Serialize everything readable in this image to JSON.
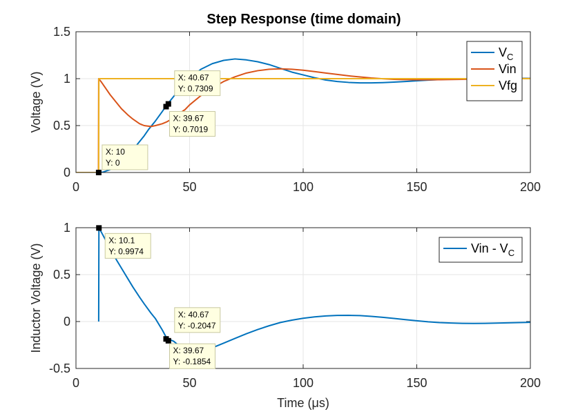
{
  "colors": {
    "blue": "#0072bd",
    "orange": "#d95319",
    "yellow": "#edb120",
    "green": "#77ac30"
  },
  "chart_data": [
    {
      "type": "line",
      "title": "Step Response (time domain)",
      "xlabel": "",
      "ylabel": "Voltage (V)",
      "xlim": [
        0,
        200
      ],
      "ylim": [
        0,
        1.5
      ],
      "xticks": [
        "0",
        "50",
        "100",
        "150",
        "200"
      ],
      "yticks": [
        "0",
        "0.5",
        "1",
        "1.5"
      ],
      "grid": true,
      "legend_position": "top-right",
      "legend": [
        {
          "main": "V",
          "sub": "C",
          "color": "#0072bd"
        },
        {
          "main": "Vin",
          "sub": "",
          "color": "#d95319"
        },
        {
          "main": "Vfg",
          "sub": "",
          "color": "#edb120"
        }
      ],
      "series": [
        {
          "name": "VC",
          "color": "#0072bd",
          "x": [
            10,
            12,
            15,
            18,
            20,
            22,
            25,
            28,
            30,
            32,
            35,
            38,
            40,
            42,
            45,
            48,
            50,
            55,
            60,
            65,
            70,
            75,
            80,
            85,
            90,
            95,
            100,
            105,
            110,
            115,
            120,
            125,
            130,
            135,
            140,
            145,
            150,
            155,
            160,
            165,
            170,
            175,
            180,
            185,
            190,
            195,
            200
          ],
          "y": [
            0,
            0.005,
            0.03,
            0.07,
            0.11,
            0.16,
            0.24,
            0.33,
            0.39,
            0.46,
            0.55,
            0.65,
            0.72,
            0.78,
            0.87,
            0.95,
            1.0,
            1.1,
            1.16,
            1.195,
            1.21,
            1.2,
            1.18,
            1.15,
            1.11,
            1.07,
            1.04,
            1.01,
            0.985,
            0.97,
            0.96,
            0.955,
            0.955,
            0.958,
            0.963,
            0.97,
            0.977,
            0.984,
            0.99,
            0.995,
            0.999,
            1.002,
            1.004,
            1.005,
            1.005,
            1.004,
            1.003
          ]
        },
        {
          "name": "Vin",
          "color": "#d95319",
          "x": [
            9.9,
            10,
            11,
            13,
            15,
            18,
            20,
            23,
            25,
            28,
            30,
            33,
            35,
            38,
            40,
            43,
            45,
            48,
            50,
            55,
            60,
            65,
            70,
            75,
            80,
            85,
            90,
            95,
            100,
            105,
            110,
            115,
            120,
            125,
            130,
            135,
            140,
            145,
            150,
            155,
            160,
            165,
            170,
            175,
            180,
            185,
            190,
            195,
            200
          ],
          "y": [
            0,
            1.0,
            0.97,
            0.9,
            0.83,
            0.74,
            0.68,
            0.61,
            0.57,
            0.52,
            0.5,
            0.49,
            0.5,
            0.52,
            0.54,
            0.58,
            0.62,
            0.67,
            0.72,
            0.82,
            0.9,
            0.97,
            1.02,
            1.06,
            1.085,
            1.1,
            1.105,
            1.1,
            1.09,
            1.075,
            1.06,
            1.045,
            1.03,
            1.018,
            1.007,
            0.999,
            0.993,
            0.99,
            0.988,
            0.988,
            0.989,
            0.991,
            0.993,
            0.995,
            0.997,
            0.999,
            1.0,
            1.001,
            1.001
          ]
        },
        {
          "name": "Vfg",
          "color": "#edb120",
          "x": [
            0,
            9.9,
            10,
            10.1,
            200
          ],
          "y": [
            0,
            0,
            0,
            1,
            1
          ]
        }
      ],
      "datatips": [
        {
          "x": 10,
          "y": 0,
          "text": [
            "X: 10",
            "Y: 0"
          ]
        },
        {
          "x": 40.67,
          "y": 0.7309,
          "text": [
            "X: 40.67",
            "Y: 0.7309"
          ]
        },
        {
          "x": 39.67,
          "y": 0.7019,
          "text": [
            "X: 39.67",
            "Y: 0.7019"
          ]
        }
      ]
    },
    {
      "type": "line",
      "title": "",
      "xlabel": "Time (μs)",
      "ylabel": "Inductor Voltage (V)",
      "xlim": [
        0,
        200
      ],
      "ylim": [
        -0.5,
        1
      ],
      "xticks": [
        "0",
        "50",
        "100",
        "150",
        "200"
      ],
      "yticks": [
        "-0.5",
        "0",
        "0.5",
        "1"
      ],
      "grid": true,
      "legend_position": "top-right",
      "legend": [
        {
          "main": "Vin - V",
          "sub": "C",
          "color": "#0072bd"
        }
      ],
      "series": [
        {
          "name": "Vin - VC",
          "color": "#0072bd",
          "x": [
            10,
            10.1,
            11,
            13,
            15,
            18,
            20,
            23,
            25,
            28,
            30,
            33,
            35,
            38,
            40,
            43,
            45,
            48,
            50,
            55,
            60,
            65,
            70,
            75,
            80,
            85,
            90,
            95,
            100,
            105,
            110,
            115,
            120,
            125,
            130,
            135,
            140,
            145,
            150,
            155,
            160,
            165,
            170,
            175,
            180,
            185,
            190,
            195,
            200
          ],
          "y": [
            0,
            0.9974,
            0.96,
            0.87,
            0.78,
            0.65,
            0.57,
            0.45,
            0.37,
            0.26,
            0.19,
            0.09,
            0.03,
            -0.09,
            -0.18,
            -0.21,
            -0.25,
            -0.28,
            -0.3,
            -0.31,
            -0.28,
            -0.23,
            -0.18,
            -0.13,
            -0.085,
            -0.045,
            -0.01,
            0.015,
            0.035,
            0.05,
            0.06,
            0.065,
            0.066,
            0.063,
            0.055,
            0.045,
            0.033,
            0.02,
            0.008,
            -0.003,
            -0.011,
            -0.016,
            -0.019,
            -0.02,
            -0.019,
            -0.017,
            -0.014,
            -0.011,
            -0.008
          ]
        }
      ],
      "datatips": [
        {
          "x": 10.1,
          "y": 0.9974,
          "text": [
            "X: 10.1",
            "Y: 0.9974"
          ]
        },
        {
          "x": 40.67,
          "y": -0.2047,
          "text": [
            "X: 40.67",
            "Y: -0.2047"
          ]
        },
        {
          "x": 39.67,
          "y": -0.1854,
          "text": [
            "X: 39.67",
            "Y: -0.1854"
          ]
        }
      ]
    }
  ]
}
